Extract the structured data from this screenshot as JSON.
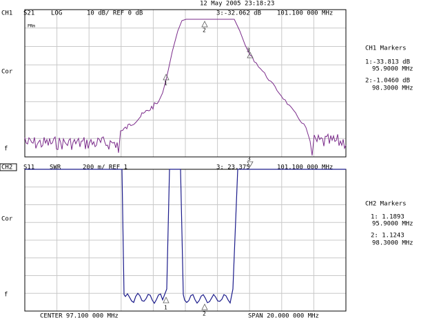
{
  "header": {
    "timestamp": "12 May 2005 23:18:23"
  },
  "ch1": {
    "channel": "CH1",
    "param": "S21",
    "format": "LOG",
    "scale": "10 dB/ REF 0 dB",
    "active_marker": "3:-32.062 dB",
    "active_freq": "101.100 000 MHz",
    "side": {
      "tag": "PRm",
      "cor": "Cor",
      "f": "f"
    },
    "marker_labels": [
      "1",
      "2",
      "3"
    ],
    "markers": {
      "title": "CH1 Markers",
      "m1_value": "1:-33.813 dB",
      "m1_freq": "95.9000 MHz",
      "m2_value": "2:-1.0460 dB",
      "m2_freq": "98.3000 MHz"
    }
  },
  "ch2": {
    "channel": "CH2",
    "param": "S11",
    "format": "SWR",
    "scale": "200 m/ REF 1",
    "active_marker": "3: 23.375",
    "active_freq": "101.100 000 MHz",
    "side": {
      "cor": "Cor",
      "f": "f"
    },
    "marker_labels": [
      "1",
      "2",
      "3"
    ],
    "markers": {
      "title": "CH2 Markers",
      "m1_value": "1: 1.1893",
      "m1_freq": "95.9000 MHz",
      "m2_value": "2: 1.1243",
      "m2_freq": "98.3000 MHz"
    }
  },
  "footer": {
    "center": "CENTER 97.100 000 MHz",
    "span": "SPAN 20.000 000 MHz"
  }
}
